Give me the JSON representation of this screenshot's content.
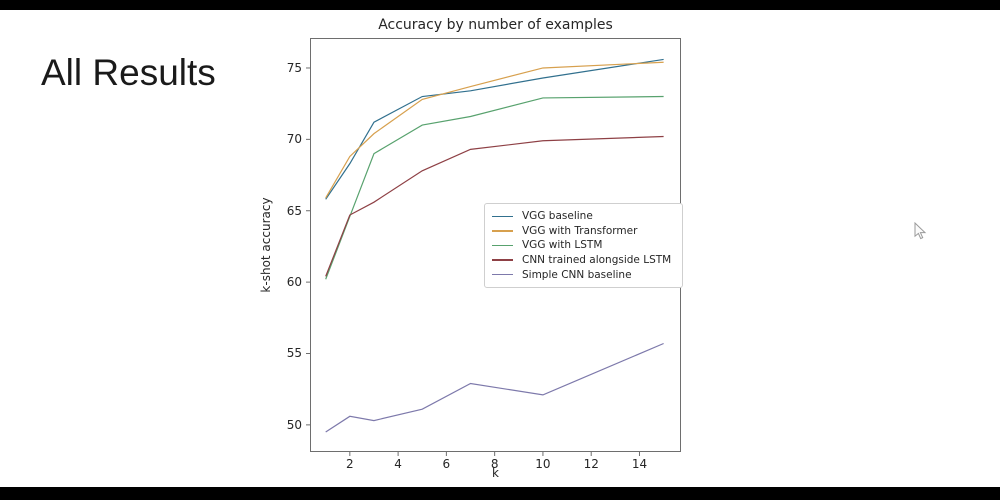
{
  "slide": {
    "heading": "All Results",
    "background_color": "#ffffff",
    "letterbox_color": "#000000"
  },
  "chart_data": {
    "type": "line",
    "title": "Accuracy by number of examples",
    "xlabel": "k",
    "ylabel": "k-shot accuracy",
    "x": [
      1,
      2,
      3,
      5,
      7,
      10,
      15
    ],
    "xticks": [
      2,
      4,
      6,
      8,
      10,
      12,
      14
    ],
    "yticks": [
      50,
      55,
      60,
      65,
      70,
      75
    ],
    "xlim": [
      0.35,
      15.72
    ],
    "ylim": [
      48.1,
      77.1
    ],
    "grid": false,
    "legend_position": "center-left-inside",
    "axis_color": "#6e6e6e",
    "text_color": "#262626",
    "series": [
      {
        "name": "VGG baseline",
        "color": "#31708e",
        "values": [
          65.8,
          68.3,
          71.2,
          73.0,
          73.4,
          74.3,
          75.6
        ]
      },
      {
        "name": "VGG with Transformer",
        "color": "#d7a04e",
        "values": [
          65.9,
          68.8,
          70.4,
          72.8,
          73.7,
          75.0,
          75.4
        ]
      },
      {
        "name": "VGG with LSTM",
        "color": "#58a26e",
        "values": [
          60.2,
          64.6,
          69.0,
          71.0,
          71.6,
          72.9,
          73.0
        ]
      },
      {
        "name": "CNN trained alongside LSTM",
        "color": "#8e4045",
        "values": [
          60.4,
          64.7,
          65.6,
          67.8,
          69.3,
          69.9,
          70.2
        ]
      },
      {
        "name": "Simple CNN baseline",
        "color": "#7d79ab",
        "values": [
          49.5,
          50.6,
          50.3,
          51.1,
          52.9,
          52.1,
          55.7
        ]
      }
    ]
  }
}
